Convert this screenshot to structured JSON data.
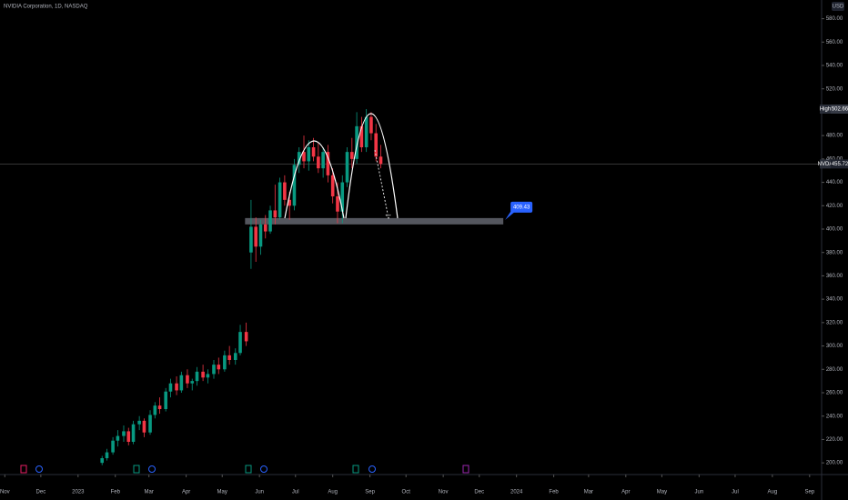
{
  "chart_data": {
    "type": "candlestick",
    "title": "NVIDIA Corporation, 1D, NASDAQ",
    "currency": "USD",
    "x": [
      81,
      85,
      90,
      94,
      99,
      103,
      107,
      112,
      116,
      121,
      125,
      129,
      134,
      138,
      143,
      147,
      152,
      156,
      160,
      165,
      169,
      174,
      178,
      183,
      187,
      192,
      196,
      201,
      205,
      209,
      213,
      217,
      221,
      225,
      229,
      233,
      237,
      241,
      245,
      249,
      253,
      257,
      261,
      265,
      269,
      273,
      277,
      281,
      285,
      289,
      293,
      297,
      301,
      305,
      309,
      313
    ],
    "open": [
      200,
      204,
      209,
      219,
      223,
      227,
      218,
      233,
      236,
      226,
      241,
      249,
      246,
      261,
      268,
      262,
      275,
      268,
      270,
      278,
      273,
      276,
      284,
      280,
      292,
      288,
      294,
      312,
      380,
      402,
      385,
      404,
      398,
      416,
      410,
      440,
      425,
      420,
      455,
      466,
      458,
      470,
      462,
      452,
      466,
      446,
      428,
      415,
      440,
      466,
      460,
      488,
      470,
      496,
      482,
      462
    ],
    "high": [
      206,
      212,
      222,
      228,
      232,
      230,
      236,
      240,
      238,
      245,
      252,
      256,
      264,
      272,
      274,
      278,
      280,
      272,
      282,
      284,
      280,
      288,
      290,
      296,
      300,
      298,
      318,
      320,
      425,
      410,
      408,
      412,
      420,
      438,
      444,
      446,
      432,
      460,
      470,
      480,
      476,
      478,
      474,
      470,
      472,
      452,
      440,
      446,
      470,
      478,
      500,
      496,
      502.66,
      500,
      490,
      472
    ],
    "low": [
      198,
      202,
      207,
      214,
      218,
      215,
      216,
      228,
      222,
      224,
      238,
      242,
      244,
      256,
      258,
      260,
      264,
      262,
      266,
      270,
      268,
      272,
      276,
      278,
      284,
      284,
      292,
      300,
      366,
      372,
      378,
      392,
      396,
      404,
      408,
      420,
      408,
      416,
      448,
      452,
      450,
      458,
      448,
      444,
      440,
      422,
      405,
      405,
      436,
      452,
      456,
      466,
      466,
      476,
      458,
      452
    ],
    "close": [
      204,
      209,
      219,
      223,
      227,
      218,
      233,
      236,
      226,
      241,
      249,
      246,
      261,
      268,
      262,
      275,
      268,
      270,
      278,
      273,
      276,
      284,
      280,
      292,
      288,
      294,
      312,
      304,
      402,
      385,
      404,
      398,
      416,
      410,
      440,
      425,
      420,
      455,
      466,
      458,
      470,
      462,
      452,
      466,
      446,
      428,
      415,
      440,
      466,
      460,
      488,
      470,
      496,
      482,
      462,
      455.72
    ],
    "up_color": "#089981",
    "down_color": "#f23645",
    "ylim": [
      190,
      596
    ],
    "yticks": [
      {
        "value": 200,
        "label": "200.00"
      },
      {
        "value": 220,
        "label": "220.00"
      },
      {
        "value": 240,
        "label": "240.00"
      },
      {
        "value": 260,
        "label": "260.00"
      },
      {
        "value": 280,
        "label": "280.00"
      },
      {
        "value": 300,
        "label": "300.00"
      },
      {
        "value": 320,
        "label": "320.00"
      },
      {
        "value": 340,
        "label": "340.00"
      },
      {
        "value": 360,
        "label": "360.00"
      },
      {
        "value": 380,
        "label": "380.00"
      },
      {
        "value": 400,
        "label": "400.00"
      },
      {
        "value": 420,
        "label": "420.00"
      },
      {
        "value": 440,
        "label": "440.00"
      },
      {
        "value": 460,
        "label": "460.00"
      },
      {
        "value": 480,
        "label": "480.00"
      },
      {
        "value": 500,
        "label": "500.00"
      },
      {
        "value": 520,
        "label": "520.00"
      },
      {
        "value": 540,
        "label": "540.00"
      },
      {
        "value": 560,
        "label": "560.00"
      },
      {
        "value": 580,
        "label": "580.00"
      }
    ],
    "xlim": [
      -4,
      680
    ],
    "xticks": [
      {
        "value": 0,
        "label": "Nov"
      },
      {
        "value": 30,
        "label": "Dec"
      },
      {
        "value": 61,
        "label": "2023"
      },
      {
        "value": 92,
        "label": "Feb"
      },
      {
        "value": 120,
        "label": "Mar"
      },
      {
        "value": 151,
        "label": "Apr"
      },
      {
        "value": 181,
        "label": "May"
      },
      {
        "value": 212,
        "label": "Jun"
      },
      {
        "value": 242,
        "label": "Jul"
      },
      {
        "value": 273,
        "label": "Aug"
      },
      {
        "value": 304,
        "label": "Sep"
      },
      {
        "value": 334,
        "label": "Oct"
      },
      {
        "value": 365,
        "label": "Nov"
      },
      {
        "value": 395,
        "label": "Dec"
      },
      {
        "value": 426,
        "label": "2024"
      },
      {
        "value": 457,
        "label": "Feb"
      },
      {
        "value": 486,
        "label": "Mar"
      },
      {
        "value": 517,
        "label": "Apr"
      },
      {
        "value": 547,
        "label": "May"
      },
      {
        "value": 578,
        "label": "Jun"
      },
      {
        "value": 608,
        "label": "Jul"
      },
      {
        "value": 639,
        "label": "Aug"
      },
      {
        "value": 670,
        "label": "Sep"
      }
    ],
    "high_tag": {
      "label": "High",
      "value": 502.66
    },
    "last_tag": {
      "label": "NVDA",
      "value": 455.72
    },
    "zone": {
      "x": [
        200,
        415
      ],
      "y": [
        404,
        409.43
      ],
      "label": 409.43
    }
  }
}
